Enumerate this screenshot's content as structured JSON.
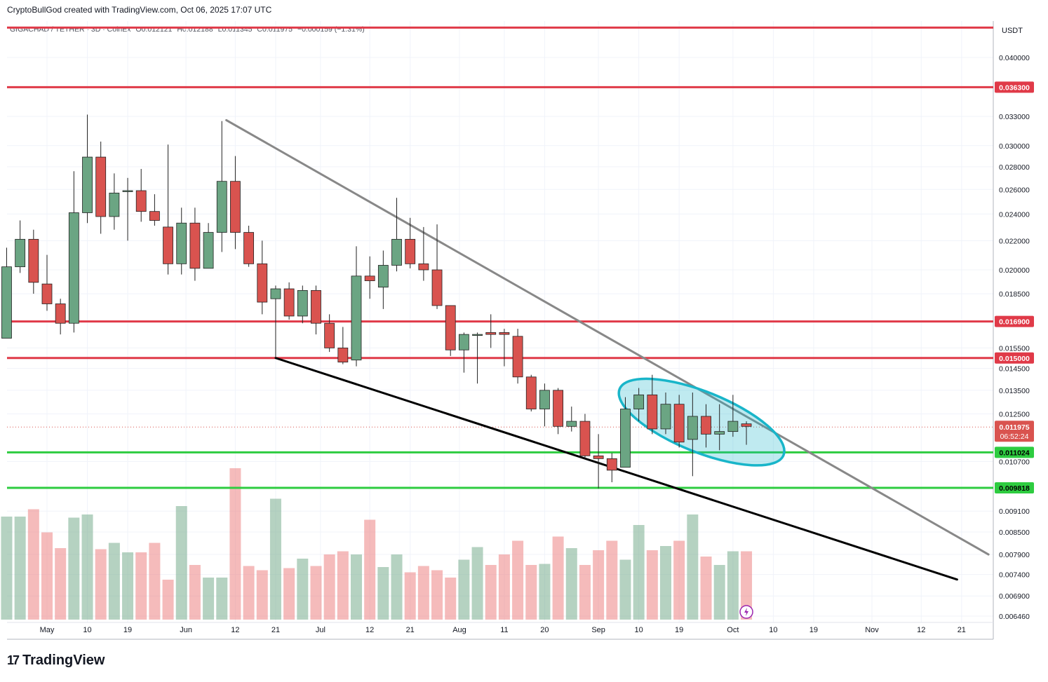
{
  "header": {
    "created_by": "CryptoBullGod created with TradingView.com, Oct 06, 2025 17:07 UTC"
  },
  "legend": {
    "symbol": "GIGACHAD / TETHER · 3D · CoinEx",
    "open": "O0.012121",
    "high": "H0.012188",
    "low": "L0.011345",
    "close": "C0.011975",
    "change": "−0.000159 (−1.31%)"
  },
  "axis": {
    "currency": "USDT"
  },
  "brand": {
    "name": "TradingView",
    "logo_text": "17"
  },
  "colors": {
    "up": "#6ba583",
    "down": "#d9534f",
    "resistance": "#e03a48",
    "support": "#2ecc40",
    "trend_upper": "#888888",
    "trend_lower": "#000000",
    "ellipse": "#19b5c9"
  },
  "chart_data": {
    "type": "candlestick",
    "timeframe": "3D",
    "y_scale": "log",
    "ylim": [
      0.00628,
      0.0441
    ],
    "y_ticks": [
      "0.040000",
      "0.033000",
      "0.030000",
      "0.028000",
      "0.026000",
      "0.024000",
      "0.022000",
      "0.020000",
      "0.018500",
      "0.015500",
      "0.014500",
      "0.013500",
      "0.012500",
      "0.010700",
      "0.009100",
      "0.008500",
      "0.007900",
      "0.007400",
      "0.006900",
      "0.006460"
    ],
    "x_ticks": [
      {
        "label": "May",
        "date": "2025-05-01"
      },
      {
        "label": "10",
        "date": "2025-05-10"
      },
      {
        "label": "19",
        "date": "2025-05-19"
      },
      {
        "label": "Jun",
        "date": "2025-06-01"
      },
      {
        "label": "12",
        "date": "2025-06-12"
      },
      {
        "label": "21",
        "date": "2025-06-21"
      },
      {
        "label": "Jul",
        "date": "2025-07-01"
      },
      {
        "label": "12",
        "date": "2025-07-12"
      },
      {
        "label": "21",
        "date": "2025-07-21"
      },
      {
        "label": "Aug",
        "date": "2025-08-01"
      },
      {
        "label": "11",
        "date": "2025-08-11"
      },
      {
        "label": "20",
        "date": "2025-08-20"
      },
      {
        "label": "Sep",
        "date": "2025-09-01"
      },
      {
        "label": "10",
        "date": "2025-09-10"
      },
      {
        "label": "19",
        "date": "2025-09-19"
      },
      {
        "label": "Oct",
        "date": "2025-10-01"
      },
      {
        "label": "10",
        "date": "2025-10-10"
      },
      {
        "label": "19",
        "date": "2025-10-19"
      },
      {
        "label": "Nov",
        "date": "2025-11-01"
      },
      {
        "label": "12",
        "date": "2025-11-12"
      },
      {
        "label": "21",
        "date": "2025-11-21"
      }
    ],
    "candles": [
      {
        "date": "2025-04-22",
        "o": 0.016,
        "h": 0.0215,
        "l": 0.016,
        "c": 0.0202
      },
      {
        "date": "2025-04-25",
        "o": 0.0202,
        "h": 0.0235,
        "l": 0.0198,
        "c": 0.0221
      },
      {
        "date": "2025-04-28",
        "o": 0.0221,
        "h": 0.0228,
        "l": 0.0185,
        "c": 0.0192
      },
      {
        "date": "2025-05-01",
        "o": 0.0191,
        "h": 0.021,
        "l": 0.0175,
        "c": 0.0179
      },
      {
        "date": "2025-05-04",
        "o": 0.0179,
        "h": 0.0182,
        "l": 0.0162,
        "c": 0.0168
      },
      {
        "date": "2025-05-07",
        "o": 0.0168,
        "h": 0.0276,
        "l": 0.0163,
        "c": 0.0241
      },
      {
        "date": "2025-05-10",
        "o": 0.0241,
        "h": 0.0332,
        "l": 0.0233,
        "c": 0.0289
      },
      {
        "date": "2025-05-13",
        "o": 0.0289,
        "h": 0.0304,
        "l": 0.0225,
        "c": 0.0238
      },
      {
        "date": "2025-05-16",
        "o": 0.0238,
        "h": 0.0274,
        "l": 0.0228,
        "c": 0.0257
      },
      {
        "date": "2025-05-19",
        "o": 0.0259,
        "h": 0.027,
        "l": 0.022,
        "c": 0.0259
      },
      {
        "date": "2025-05-22",
        "o": 0.0259,
        "h": 0.0278,
        "l": 0.0234,
        "c": 0.0242
      },
      {
        "date": "2025-05-25",
        "o": 0.0242,
        "h": 0.0256,
        "l": 0.0231,
        "c": 0.0235
      },
      {
        "date": "2025-05-28",
        "o": 0.023,
        "h": 0.0301,
        "l": 0.0197,
        "c": 0.0204
      },
      {
        "date": "2025-05-31",
        "o": 0.0204,
        "h": 0.0245,
        "l": 0.0197,
        "c": 0.0233
      },
      {
        "date": "2025-06-03",
        "o": 0.0233,
        "h": 0.0245,
        "l": 0.0193,
        "c": 0.0201
      },
      {
        "date": "2025-06-06",
        "o": 0.0201,
        "h": 0.0233,
        "l": 0.0201,
        "c": 0.0226
      },
      {
        "date": "2025-06-09",
        "o": 0.0226,
        "h": 0.0325,
        "l": 0.0212,
        "c": 0.0267
      },
      {
        "date": "2025-06-12",
        "o": 0.0267,
        "h": 0.029,
        "l": 0.0214,
        "c": 0.0226
      },
      {
        "date": "2025-06-15",
        "o": 0.0226,
        "h": 0.0231,
        "l": 0.0202,
        "c": 0.0204
      },
      {
        "date": "2025-06-18",
        "o": 0.0204,
        "h": 0.022,
        "l": 0.0173,
        "c": 0.018
      },
      {
        "date": "2025-06-21",
        "o": 0.0182,
        "h": 0.019,
        "l": 0.015,
        "c": 0.0188
      },
      {
        "date": "2025-06-24",
        "o": 0.0188,
        "h": 0.0192,
        "l": 0.017,
        "c": 0.0172
      },
      {
        "date": "2025-06-27",
        "o": 0.0172,
        "h": 0.019,
        "l": 0.0168,
        "c": 0.0187
      },
      {
        "date": "2025-06-30",
        "o": 0.0187,
        "h": 0.019,
        "l": 0.0162,
        "c": 0.0168
      },
      {
        "date": "2025-07-03",
        "o": 0.0168,
        "h": 0.0173,
        "l": 0.0153,
        "c": 0.0155
      },
      {
        "date": "2025-07-06",
        "o": 0.0155,
        "h": 0.0166,
        "l": 0.0147,
        "c": 0.0148
      },
      {
        "date": "2025-07-09",
        "o": 0.0149,
        "h": 0.0216,
        "l": 0.0146,
        "c": 0.0196
      },
      {
        "date": "2025-07-12",
        "o": 0.0196,
        "h": 0.0209,
        "l": 0.0182,
        "c": 0.0193
      },
      {
        "date": "2025-07-15",
        "o": 0.0189,
        "h": 0.0213,
        "l": 0.0176,
        "c": 0.0203
      },
      {
        "date": "2025-07-18",
        "o": 0.0203,
        "h": 0.0253,
        "l": 0.0199,
        "c": 0.0221
      },
      {
        "date": "2025-07-21",
        "o": 0.0221,
        "h": 0.0237,
        "l": 0.0201,
        "c": 0.0204
      },
      {
        "date": "2025-07-24",
        "o": 0.0204,
        "h": 0.023,
        "l": 0.0193,
        "c": 0.02
      },
      {
        "date": "2025-07-27",
        "o": 0.02,
        "h": 0.0232,
        "l": 0.0176,
        "c": 0.0178
      },
      {
        "date": "2025-07-30",
        "o": 0.0178,
        "h": 0.0178,
        "l": 0.0151,
        "c": 0.0154
      },
      {
        "date": "2025-08-02",
        "o": 0.0154,
        "h": 0.0163,
        "l": 0.0143,
        "c": 0.0162
      },
      {
        "date": "2025-08-05",
        "o": 0.0162,
        "h": 0.0163,
        "l": 0.0138,
        "c": 0.0162
      },
      {
        "date": "2025-08-08",
        "o": 0.0163,
        "h": 0.0173,
        "l": 0.0155,
        "c": 0.0162
      },
      {
        "date": "2025-08-11",
        "o": 0.0163,
        "h": 0.0165,
        "l": 0.0146,
        "c": 0.0162
      },
      {
        "date": "2025-08-14",
        "o": 0.0161,
        "h": 0.0165,
        "l": 0.0138,
        "c": 0.0141
      },
      {
        "date": "2025-08-17",
        "o": 0.0141,
        "h": 0.0142,
        "l": 0.0126,
        "c": 0.0127
      },
      {
        "date": "2025-08-20",
        "o": 0.0127,
        "h": 0.0138,
        "l": 0.012,
        "c": 0.0135
      },
      {
        "date": "2025-08-23",
        "o": 0.0135,
        "h": 0.0136,
        "l": 0.0117,
        "c": 0.012
      },
      {
        "date": "2025-08-26",
        "o": 0.012,
        "h": 0.0128,
        "l": 0.0118,
        "c": 0.0122
      },
      {
        "date": "2025-08-29",
        "o": 0.0122,
        "h": 0.0125,
        "l": 0.0108,
        "c": 0.0109
      },
      {
        "date": "2025-09-01",
        "o": 0.0109,
        "h": 0.0117,
        "l": 0.0098,
        "c": 0.0108
      },
      {
        "date": "2025-09-04",
        "o": 0.0108,
        "h": 0.011,
        "l": 0.01,
        "c": 0.0104
      },
      {
        "date": "2025-09-07",
        "o": 0.0105,
        "h": 0.0132,
        "l": 0.0105,
        "c": 0.0127
      },
      {
        "date": "2025-09-10",
        "o": 0.0127,
        "h": 0.0136,
        "l": 0.0122,
        "c": 0.0133
      },
      {
        "date": "2025-09-13",
        "o": 0.0133,
        "h": 0.0142,
        "l": 0.0117,
        "c": 0.0119
      },
      {
        "date": "2025-09-16",
        "o": 0.0119,
        "h": 0.0134,
        "l": 0.0117,
        "c": 0.0129
      },
      {
        "date": "2025-09-19",
        "o": 0.0129,
        "h": 0.0133,
        "l": 0.0112,
        "c": 0.0114
      },
      {
        "date": "2025-09-22",
        "o": 0.0115,
        "h": 0.0134,
        "l": 0.0102,
        "c": 0.0124
      },
      {
        "date": "2025-09-25",
        "o": 0.0124,
        "h": 0.0129,
        "l": 0.0112,
        "c": 0.0117
      },
      {
        "date": "2025-09-28",
        "o": 0.0117,
        "h": 0.0129,
        "l": 0.0111,
        "c": 0.0118
      },
      {
        "date": "2025-10-01",
        "o": 0.0118,
        "h": 0.0133,
        "l": 0.0116,
        "c": 0.0122
      },
      {
        "date": "2025-10-04",
        "o": 0.0121,
        "h": 0.0122,
        "l": 0.0113,
        "c": 0.012
      }
    ],
    "volume": [
      0.98,
      0.98,
      1.05,
      0.83,
      0.68,
      0.97,
      1.0,
      0.67,
      0.73,
      0.64,
      0.64,
      0.73,
      0.38,
      1.08,
      0.52,
      0.4,
      0.4,
      1.44,
      0.51,
      0.47,
      1.15,
      0.49,
      0.58,
      0.51,
      0.62,
      0.65,
      0.62,
      0.95,
      0.5,
      0.62,
      0.45,
      0.51,
      0.47,
      0.4,
      0.57,
      0.69,
      0.52,
      0.62,
      0.75,
      0.52,
      0.53,
      0.79,
      0.68,
      0.52,
      0.66,
      0.75,
      0.57,
      0.9,
      0.66,
      0.7,
      0.75,
      1.0,
      0.6,
      0.52,
      0.65,
      0.65
    ],
    "horizontal_levels": [
      {
        "price": 0.0441,
        "kind": "resistance"
      },
      {
        "price": 0.0363,
        "label": "0.036300",
        "kind": "resistance"
      },
      {
        "price": 0.0169,
        "label": "0.016900",
        "kind": "resistance"
      },
      {
        "price": 0.015,
        "label": "0.015000",
        "kind": "resistance"
      },
      {
        "price": 0.011024,
        "label": "0.011024",
        "kind": "support"
      },
      {
        "price": 0.009818,
        "label": "0.009818",
        "kind": "support"
      }
    ],
    "last_price": {
      "price": 0.011975,
      "label": "0.011975",
      "countdown": "06:52:24"
    },
    "trendlines": [
      {
        "name": "upper",
        "from": {
          "date": "2025-06-10",
          "price": 0.0326
        },
        "to": {
          "date": "2025-11-27",
          "price": 0.0079
        }
      },
      {
        "name": "lower",
        "from": {
          "date": "2025-06-21",
          "price": 0.015
        },
        "to": {
          "date": "2025-11-20",
          "price": 0.00728
        }
      }
    ],
    "ellipse": {
      "center": {
        "date": "2025-09-24",
        "price": 0.01217
      }
    }
  }
}
